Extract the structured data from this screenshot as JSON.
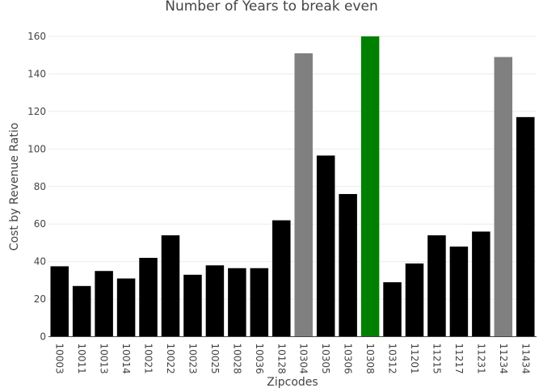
{
  "chart_data": {
    "type": "bar",
    "title": "Number of Years to break even",
    "xlabel": "Zipcodes",
    "ylabel": "Cost by Revenue Ratio",
    "ylim": [
      0,
      160
    ],
    "yticks": [
      0,
      20,
      40,
      60,
      80,
      100,
      120,
      140,
      160
    ],
    "grid": true,
    "categories": [
      "10003",
      "10011",
      "10013",
      "10014",
      "10021",
      "10022",
      "10023",
      "10025",
      "10028",
      "10036",
      "10128",
      "10304",
      "10305",
      "10306",
      "10308",
      "10312",
      "11201",
      "11215",
      "11217",
      "11231",
      "11234",
      "11434"
    ],
    "values": [
      37.5,
      27,
      35,
      31,
      42,
      54,
      33,
      38,
      36.5,
      36.5,
      62,
      151,
      96.5,
      76,
      161,
      29,
      39,
      54,
      48,
      56,
      149,
      117
    ],
    "colors": [
      "#000000",
      "#000000",
      "#000000",
      "#000000",
      "#000000",
      "#000000",
      "#000000",
      "#000000",
      "#000000",
      "#000000",
      "#000000",
      "#808080",
      "#000000",
      "#000000",
      "#008000",
      "#000000",
      "#000000",
      "#000000",
      "#000000",
      "#000000",
      "#808080",
      "#000000"
    ]
  }
}
